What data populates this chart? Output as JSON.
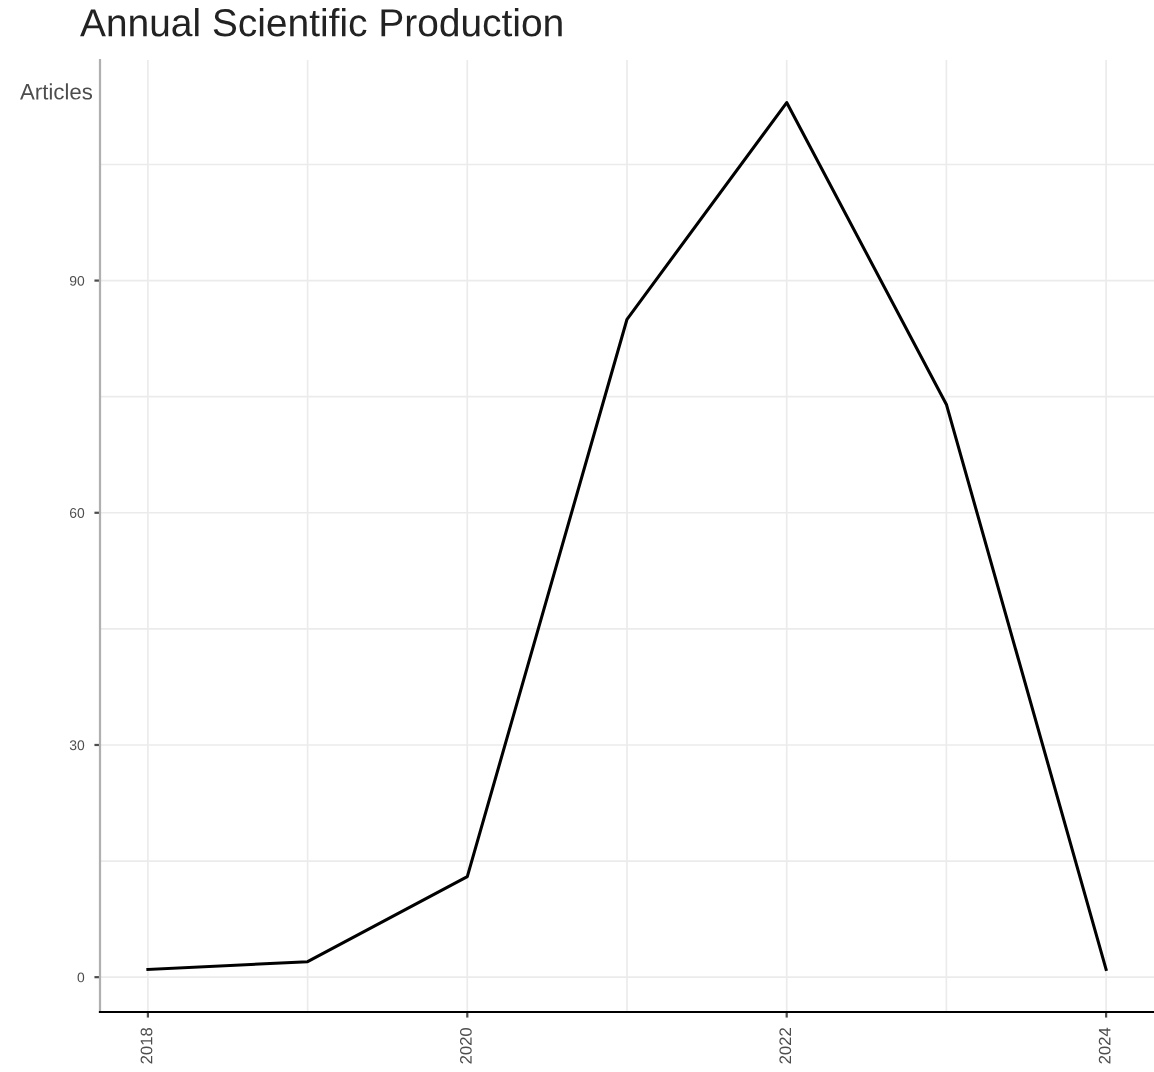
{
  "chart_data": {
    "type": "line",
    "title": "Annual Scientific Production",
    "ylabel": "Articles",
    "x": [
      2018,
      2019,
      2020,
      2021,
      2022,
      2023,
      2024
    ],
    "series": [
      {
        "color": "#000000",
        "values": [
          1,
          2,
          13,
          85,
          113,
          74,
          1
        ]
      }
    ],
    "xlim": [
      2017.7,
      2024.3
    ],
    "xticks": [
      2018,
      2020,
      2022,
      2024
    ],
    "ylim": [
      -4.5,
      118.5
    ],
    "yticks": [
      0,
      30,
      60,
      90
    ],
    "grid": true,
    "marker": "none",
    "line_style": "solid"
  }
}
